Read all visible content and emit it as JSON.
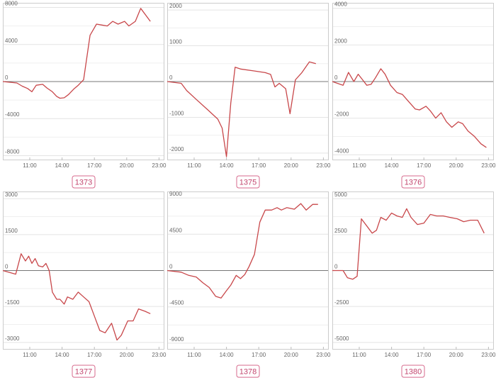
{
  "chart_data": [
    {
      "type": "line",
      "label": "1373",
      "yticks": [
        8000,
        4000,
        0,
        -4000,
        -8000
      ],
      "ylim": [
        -8500,
        8500
      ],
      "xticks": [
        "11:00",
        "14:00",
        "17:00",
        "20:00",
        "23:00"
      ],
      "xlim": [
        8.5,
        23.5
      ],
      "line_color": "#c8474a",
      "x": [
        8.5,
        9.8,
        10.3,
        10.8,
        11.2,
        11.6,
        12.2,
        12.6,
        13.1,
        13.5,
        13.8,
        14.2,
        14.6,
        15.1,
        15.5,
        16.0,
        16.6,
        17.2,
        17.7,
        18.2,
        18.7,
        19.2,
        19.8,
        20.2,
        20.8,
        21.3,
        22.2
      ],
      "y": [
        0,
        -150,
        -500,
        -750,
        -1100,
        -400,
        -300,
        -700,
        -1100,
        -1600,
        -1800,
        -1750,
        -1400,
        -800,
        -400,
        200,
        5000,
        6200,
        6100,
        6000,
        6500,
        6200,
        6500,
        6000,
        6500,
        7900,
        6500
      ]
    },
    {
      "type": "line",
      "label": "1375",
      "yticks": [
        2000,
        1000,
        0,
        -1000,
        -2000
      ],
      "ylim": [
        -2200,
        2200
      ],
      "xticks": [
        "11:00",
        "14:00",
        "17:00",
        "20:00",
        "23:00"
      ],
      "xlim": [
        8.5,
        23.5
      ],
      "line_color": "#c8474a",
      "x": [
        8.5,
        9.8,
        10.3,
        11.2,
        12.3,
        13.2,
        13.6,
        14.0,
        14.4,
        14.8,
        15.3,
        16.5,
        17.6,
        18.1,
        18.5,
        18.9,
        19.5,
        19.9,
        20.4,
        21.0,
        21.7,
        22.3
      ],
      "y": [
        0,
        -50,
        -250,
        -500,
        -800,
        -1050,
        -1300,
        -2100,
        -600,
        400,
        350,
        300,
        250,
        200,
        -150,
        -50,
        -200,
        -900,
        50,
        250,
        550,
        500
      ]
    },
    {
      "type": "line",
      "label": "1376",
      "yticks": [
        4000,
        2000,
        0,
        -2000,
        -4000
      ],
      "ylim": [
        -4300,
        4300
      ],
      "xticks": [
        "11:00",
        "14:00",
        "17:00",
        "20:00",
        "23:00"
      ],
      "xlim": [
        8.5,
        23.5
      ],
      "line_color": "#c8474a",
      "x": [
        8.5,
        9.5,
        10.0,
        10.5,
        10.9,
        11.3,
        11.7,
        12.1,
        12.5,
        13.0,
        13.4,
        13.9,
        14.5,
        15.0,
        15.6,
        16.2,
        16.6,
        17.2,
        17.6,
        18.1,
        18.6,
        19.1,
        19.6,
        20.2,
        20.6,
        21.1,
        21.7,
        22.3,
        22.8
      ],
      "y": [
        0,
        -200,
        500,
        0,
        400,
        100,
        -200,
        -150,
        200,
        700,
        400,
        -200,
        -600,
        -700,
        -1100,
        -1500,
        -1550,
        -1350,
        -1600,
        -2000,
        -1700,
        -2200,
        -2500,
        -2200,
        -2300,
        -2700,
        -3000,
        -3400,
        -3600
      ]
    },
    {
      "type": "line",
      "label": "1377",
      "yticks": [
        3000,
        1500,
        0,
        -1500,
        -3000
      ],
      "ylim": [
        -3300,
        3300
      ],
      "xticks": [
        "11:00",
        "14:00",
        "17:00",
        "20:00",
        "23:00"
      ],
      "xlim": [
        8.5,
        23.5
      ],
      "line_color": "#c8474a",
      "x": [
        8.5,
        9.7,
        10.2,
        10.6,
        10.9,
        11.2,
        11.5,
        11.8,
        12.2,
        12.5,
        12.8,
        13.1,
        13.5,
        13.8,
        14.2,
        14.5,
        15.0,
        15.5,
        16.0,
        16.5,
        17.0,
        17.5,
        18.0,
        18.6,
        19.1,
        19.5,
        20.1,
        20.6,
        21.1,
        21.7,
        22.2
      ],
      "y": [
        0,
        -150,
        700,
        400,
        600,
        300,
        500,
        200,
        150,
        300,
        0,
        -900,
        -1200,
        -1200,
        -1400,
        -1100,
        -1200,
        -900,
        -1100,
        -1300,
        -1900,
        -2500,
        -2600,
        -2200,
        -2900,
        -2700,
        -2100,
        -2100,
        -1600,
        -1700,
        -1800
      ]
    },
    {
      "type": "line",
      "label": "1378",
      "yticks": [
        9000,
        4500,
        0,
        -4500,
        -9000
      ],
      "ylim": [
        -9800,
        9800
      ],
      "xticks": [
        "11:00",
        "14:00",
        "17:00",
        "20:00",
        "23:00"
      ],
      "xlim": [
        8.5,
        23.5
      ],
      "line_color": "#c8474a",
      "x": [
        8.5,
        9.8,
        10.5,
        11.2,
        11.8,
        12.4,
        13.0,
        13.5,
        14.0,
        14.4,
        14.9,
        15.3,
        15.7,
        16.1,
        16.6,
        17.1,
        17.6,
        18.2,
        18.7,
        19.1,
        19.6,
        20.3,
        20.9,
        21.4,
        22.0,
        22.5
      ],
      "y": [
        0,
        -200,
        -600,
        -800,
        -1500,
        -2100,
        -3200,
        -3400,
        -2500,
        -1800,
        -600,
        -1000,
        -500,
        500,
        2000,
        6000,
        7500,
        7500,
        7800,
        7500,
        7800,
        7600,
        8300,
        7500,
        8200,
        8200
      ]
    },
    {
      "type": "line",
      "label": "1380",
      "yticks": [
        5000,
        2500,
        0,
        -2500,
        -5000
      ],
      "ylim": [
        -5500,
        5500
      ],
      "xticks": [
        "11:00",
        "14:00",
        "17:00",
        "20:00",
        "23:00"
      ],
      "xlim": [
        8.5,
        23.5
      ],
      "line_color": "#c8474a",
      "x": [
        8.5,
        9.5,
        9.9,
        10.4,
        10.8,
        11.2,
        11.8,
        12.2,
        12.6,
        13.0,
        13.5,
        14.0,
        14.5,
        15.0,
        15.4,
        15.8,
        16.4,
        17.0,
        17.6,
        18.2,
        18.8,
        19.4,
        20.1,
        20.7,
        21.3,
        22.0,
        22.6
      ],
      "y": [
        0,
        0,
        -500,
        -600,
        -400,
        3600,
        3000,
        2600,
        2800,
        3700,
        3500,
        4000,
        3800,
        3700,
        4300,
        3700,
        3200,
        3300,
        3900,
        3800,
        3800,
        3700,
        3600,
        3400,
        3500,
        3500,
        2600
      ]
    }
  ]
}
